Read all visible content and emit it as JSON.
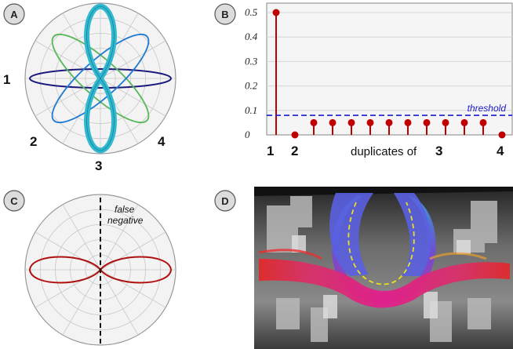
{
  "panels": {
    "a": {
      "badge": "A",
      "labels": [
        "1",
        "2",
        "3",
        "4"
      ]
    },
    "b": {
      "badge": "B",
      "threshold_label": "threshold",
      "x_label_prefix": "duplicates of",
      "x_label_ref": "3",
      "x_markers": [
        "1",
        "2",
        "4"
      ]
    },
    "c": {
      "badge": "C",
      "annotation_line1": "false",
      "annotation_line2": "negative"
    },
    "d": {
      "badge": "D"
    }
  },
  "colors": {
    "fiber1": "#1a1a7a",
    "fiber2": "#59b75a",
    "fiber3": "#1f7ad1",
    "fiber4": "#2fb8cf",
    "stem": "#c00000",
    "threshold_line": "#1a1acc",
    "polar_grid": "#c8c8c8",
    "polar_bg": "#f3f3f3"
  },
  "chart_data": {
    "type": "stem",
    "title": "",
    "xlabel": "duplicates of 3",
    "ylabel": "",
    "ylim": [
      0,
      0.5
    ],
    "y_ticks": [
      "0",
      "0.1",
      "0.2",
      "0.3",
      "0.4",
      "0.5"
    ],
    "threshold": {
      "label": "threshold",
      "value": 0.08
    },
    "series": [
      {
        "values": [
          0.5,
          0.0,
          0.05,
          0.05,
          0.05,
          0.05,
          0.05,
          0.05,
          0.05,
          0.05,
          0.05,
          0.05,
          0.0
        ]
      }
    ],
    "grid": true
  }
}
